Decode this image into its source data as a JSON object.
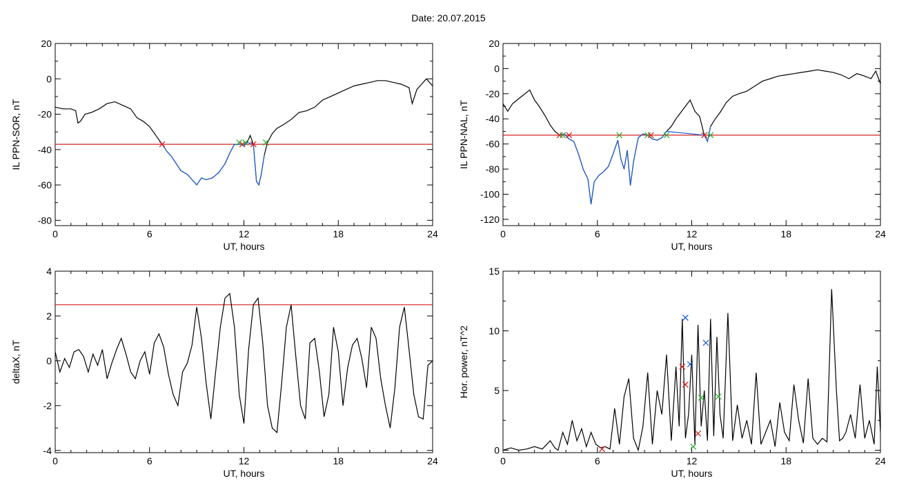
{
  "figure": {
    "title": "Date:  20.07.2015"
  },
  "chart_data": [
    {
      "type": "line",
      "panel": "top-left",
      "xlabel": "UT, hours",
      "ylabel": "IL PPN-SOR, nT",
      "xlim": [
        0,
        24
      ],
      "ylim": [
        -83,
        20
      ],
      "xticks": [
        0,
        6,
        12,
        18,
        24
      ],
      "yticks": [
        -80,
        -60,
        -40,
        -20,
        0,
        20
      ],
      "threshold": -37,
      "series": [
        {
          "color": "#000000",
          "x": [
            0,
            0.5,
            1,
            1.3,
            1.45,
            1.6,
            1.9,
            2.3,
            2.8,
            3.3,
            3.8,
            4.3,
            4.8,
            5.2,
            5.6,
            6.0,
            6.4,
            6.8,
            7.1,
            7.4,
            7.7,
            8.0,
            8.4,
            8.8,
            9.0,
            9.3,
            9.6,
            10.0,
            10.4,
            10.8,
            11.1,
            11.4,
            11.6,
            11.8,
            12.0,
            12.2,
            12.4,
            12.6,
            12.8,
            12.95,
            13.1,
            13.3,
            13.5,
            13.8,
            14.1,
            14.5,
            15.0,
            15.5,
            16.0,
            16.5,
            17.0,
            17.5,
            18.0,
            18.5,
            19.0,
            19.5,
            20.0,
            20.5,
            21.0,
            21.5,
            22.0,
            22.5,
            22.7,
            23.0,
            23.3,
            23.6,
            23.8,
            24.0
          ],
          "y": [
            -16,
            -17,
            -17,
            -18,
            -25,
            -24,
            -20,
            -19,
            -17,
            -14,
            -13,
            -15,
            -17,
            -22,
            -24,
            -27,
            -32,
            -37,
            -41,
            -44,
            -48,
            -52,
            -54,
            -58,
            -60,
            -56,
            -57,
            -56,
            -53,
            -48,
            -42,
            -37,
            -37,
            -37,
            -38,
            -36,
            -32,
            -37,
            -58,
            -60,
            -54,
            -43,
            -36,
            -31,
            -28,
            -26,
            -23,
            -19,
            -18,
            -16,
            -12,
            -10,
            -8,
            -6,
            -4,
            -3,
            -2,
            -1,
            -1,
            -2,
            -3,
            -5,
            -14,
            -6,
            -3,
            0,
            -2,
            -4
          ]
        },
        {
          "color": "#1f5fd8",
          "x": [
            6.8,
            7.1,
            7.4,
            7.7,
            8.0,
            8.4,
            8.8,
            9.0,
            9.3,
            9.6,
            10.0,
            10.4,
            10.8,
            11.1,
            11.4,
            11.6,
            11.8,
            12.0,
            12.2,
            12.6,
            12.8,
            12.95,
            13.1,
            13.3
          ],
          "y": [
            -37,
            -41,
            -44,
            -48,
            -52,
            -54,
            -58,
            -60,
            -56,
            -57,
            -56,
            -53,
            -48,
            -42,
            -37,
            -37,
            -37,
            -38,
            -36,
            -37,
            -58,
            -60,
            -54,
            -43
          ]
        }
      ],
      "markers": [
        {
          "x": 6.8,
          "y": -37,
          "color": "#d62020"
        },
        {
          "x": 11.7,
          "y": -36,
          "color": "#2cae2c"
        },
        {
          "x": 11.9,
          "y": -37,
          "color": "#d62020"
        },
        {
          "x": 12.1,
          "y": -36,
          "color": "#2cae2c"
        },
        {
          "x": 12.6,
          "y": -37,
          "color": "#d62020"
        },
        {
          "x": 13.4,
          "y": -36,
          "color": "#2cae2c"
        }
      ]
    },
    {
      "type": "line",
      "panel": "top-right",
      "xlabel": "UT, hours",
      "ylabel": "IL PPN-NAL, nT",
      "xlim": [
        0,
        24
      ],
      "ylim": [
        -125,
        20
      ],
      "xticks": [
        0,
        6,
        12,
        18,
        24
      ],
      "yticks": [
        -120,
        -100,
        -80,
        -60,
        -40,
        -20,
        0,
        20
      ],
      "threshold": -53,
      "series": [
        {
          "color": "#000000",
          "x": [
            0,
            0.3,
            0.6,
            0.9,
            1.3,
            1.7,
            2.0,
            2.3,
            2.7,
            3.0,
            3.3,
            3.6,
            3.9,
            4.2,
            4.5,
            4.8,
            5.1,
            5.4,
            5.6,
            5.8,
            6.1,
            6.4,
            6.7,
            7.0,
            7.3,
            7.5,
            7.7,
            7.9,
            8.1,
            8.3,
            8.6,
            8.9,
            9.2,
            9.5,
            9.8,
            10.1,
            10.4,
            10.7,
            11.0,
            11.3,
            11.6,
            11.9,
            12.2,
            12.5,
            12.8,
            13.0,
            13.2,
            13.5,
            13.8,
            14.2,
            14.6,
            15.0,
            15.5,
            16.0,
            16.5,
            17.0,
            17.5,
            18.0,
            18.5,
            19.0,
            19.5,
            20.0,
            20.5,
            21.0,
            21.5,
            22.0,
            22.5,
            23.0,
            23.4,
            23.7,
            24.0
          ],
          "y": [
            -28,
            -34,
            -28,
            -25,
            -21,
            -17,
            -25,
            -30,
            -38,
            -45,
            -50,
            -53,
            -52,
            -56,
            -58,
            -68,
            -80,
            -88,
            -108,
            -90,
            -85,
            -82,
            -78,
            -68,
            -57,
            -72,
            -80,
            -65,
            -93,
            -74,
            -55,
            -52,
            -53,
            -56,
            -57,
            -55,
            -50,
            -46,
            -40,
            -35,
            -30,
            -25,
            -34,
            -38,
            -53,
            -58,
            -46,
            -40,
            -35,
            -27,
            -22,
            -20,
            -18,
            -14,
            -10,
            -8,
            -6,
            -5,
            -4,
            -3,
            -2,
            -1,
            -2,
            -3,
            -5,
            -8,
            -4,
            -6,
            -8,
            -2,
            -12
          ]
        },
        {
          "color": "#1f5fd8",
          "x": [
            3.6,
            3.9,
            4.2,
            4.5,
            4.8,
            5.1,
            5.4,
            5.6,
            5.8,
            6.1,
            6.4,
            6.7,
            7.0,
            7.3,
            7.5,
            7.7,
            7.9,
            8.1,
            8.3,
            8.6,
            8.9,
            9.2,
            9.5,
            9.8,
            10.1,
            10.4,
            12.8,
            13.0,
            13.2
          ],
          "y": [
            -53,
            -52,
            -56,
            -58,
            -68,
            -80,
            -88,
            -108,
            -90,
            -85,
            -82,
            -78,
            -68,
            -57,
            -72,
            -80,
            -65,
            -93,
            -74,
            -55,
            -52,
            -53,
            -56,
            -57,
            -55,
            -50,
            -53,
            -58,
            -46
          ]
        }
      ],
      "markers": [
        {
          "x": 3.6,
          "y": -53,
          "color": "#d62020"
        },
        {
          "x": 3.8,
          "y": -53,
          "color": "#2cae2c"
        },
        {
          "x": 4.2,
          "y": -53,
          "color": "#d62020"
        },
        {
          "x": 7.4,
          "y": -53,
          "color": "#2cae2c"
        },
        {
          "x": 9.2,
          "y": -53,
          "color": "#2cae2c"
        },
        {
          "x": 9.4,
          "y": -53,
          "color": "#d62020"
        },
        {
          "x": 10.4,
          "y": -53,
          "color": "#2cae2c"
        },
        {
          "x": 12.8,
          "y": -53,
          "color": "#d62020"
        },
        {
          "x": 13.2,
          "y": -53,
          "color": "#2cae2c"
        }
      ]
    },
    {
      "type": "line",
      "panel": "bottom-left",
      "xlabel": "UT, hours",
      "ylabel": "deltaX, nT",
      "xlim": [
        0,
        24
      ],
      "ylim": [
        -4.1,
        4
      ],
      "xticks": [
        0,
        6,
        12,
        18,
        24
      ],
      "yticks": [
        -4,
        -2,
        0,
        2,
        4
      ],
      "threshold": 2.5,
      "series": [
        {
          "color": "#000000",
          "x": [
            0,
            0.3,
            0.6,
            0.9,
            1.2,
            1.5,
            1.8,
            2.1,
            2.4,
            2.7,
            3.0,
            3.3,
            3.6,
            3.9,
            4.2,
            4.5,
            4.8,
            5.1,
            5.4,
            5.7,
            6.0,
            6.3,
            6.6,
            6.9,
            7.2,
            7.5,
            7.8,
            8.1,
            8.4,
            8.7,
            9.0,
            9.3,
            9.6,
            9.9,
            10.2,
            10.5,
            10.8,
            11.1,
            11.4,
            11.7,
            12.0,
            12.3,
            12.6,
            12.9,
            13.2,
            13.5,
            13.8,
            14.1,
            14.4,
            14.7,
            15.0,
            15.3,
            15.6,
            15.9,
            16.2,
            16.5,
            16.8,
            17.1,
            17.4,
            17.7,
            18.0,
            18.3,
            18.6,
            18.9,
            19.2,
            19.5,
            19.8,
            20.1,
            20.4,
            20.7,
            21.0,
            21.3,
            21.6,
            21.9,
            22.2,
            22.5,
            22.8,
            23.1,
            23.4,
            23.7,
            24.0
          ],
          "y": [
            0.4,
            -0.5,
            0.1,
            -0.3,
            0.4,
            0.5,
            0.2,
            -0.5,
            0.3,
            -0.2,
            0.5,
            -0.8,
            -0.1,
            0.5,
            1.0,
            0.3,
            -0.5,
            -0.8,
            0.0,
            0.4,
            -0.6,
            0.8,
            1.2,
            0.6,
            -0.6,
            -1.5,
            -2.0,
            -0.5,
            -0.1,
            0.7,
            2.4,
            1.0,
            -1.0,
            -2.6,
            -0.5,
            1.5,
            2.8,
            3.0,
            1.5,
            -1.5,
            -2.8,
            0.5,
            2.5,
            2.8,
            0.8,
            -2.0,
            -3.0,
            -3.2,
            -1.0,
            1.5,
            2.5,
            0.2,
            -2.0,
            -2.6,
            0.8,
            1.0,
            -0.5,
            -2.5,
            -1.5,
            1.5,
            0.4,
            -2.0,
            -0.3,
            0.7,
            1.0,
            0.1,
            -1.2,
            1.5,
            1.0,
            -0.8,
            -2.0,
            -3.0,
            -1.2,
            1.5,
            2.4,
            0.5,
            -1.5,
            -2.5,
            -2.6,
            -0.2,
            0.0
          ]
        }
      ],
      "markers": []
    },
    {
      "type": "line",
      "panel": "bottom-right",
      "xlabel": "UT, hours",
      "ylabel": "Hor. power, nT^2",
      "xlim": [
        0,
        24
      ],
      "ylim": [
        -0.2,
        15
      ],
      "xticks": [
        0,
        6,
        12,
        18,
        24
      ],
      "yticks": [
        0,
        5,
        10,
        15
      ],
      "threshold": null,
      "series": [
        {
          "color": "#000000",
          "x": [
            0,
            0.5,
            1.0,
            1.5,
            2.0,
            2.5,
            3.0,
            3.3,
            3.5,
            3.8,
            4.1,
            4.4,
            4.7,
            5.0,
            5.3,
            5.6,
            5.9,
            6.2,
            6.5,
            6.8,
            7.1,
            7.4,
            7.7,
            8.0,
            8.3,
            8.6,
            8.9,
            9.2,
            9.5,
            9.8,
            10.1,
            10.4,
            10.7,
            11.0,
            11.2,
            11.4,
            11.6,
            11.8,
            12.0,
            12.2,
            12.4,
            12.6,
            12.8,
            13.0,
            13.2,
            13.4,
            13.6,
            13.8,
            14.0,
            14.3,
            14.6,
            14.9,
            15.2,
            15.5,
            15.8,
            16.1,
            16.4,
            16.7,
            17.0,
            17.3,
            17.6,
            17.9,
            18.2,
            18.5,
            18.8,
            19.1,
            19.4,
            19.7,
            20.0,
            20.3,
            20.6,
            20.9,
            21.2,
            21.4,
            21.6,
            21.8,
            22.1,
            22.4,
            22.7,
            23.0,
            23.3,
            23.6,
            23.8,
            24.0
          ],
          "y": [
            0,
            0.2,
            0,
            0.1,
            0.3,
            0.1,
            0.8,
            0.2,
            0,
            1.5,
            0.5,
            2.5,
            0.8,
            1.8,
            0.3,
            1.5,
            0.5,
            0.2,
            0.3,
            0.1,
            3.5,
            0.5,
            4.5,
            6.0,
            1.0,
            0,
            2.0,
            6.5,
            0.5,
            5.0,
            3.0,
            8.0,
            0.8,
            7.0,
            2.0,
            11.0,
            1.0,
            3.0,
            8.0,
            0.5,
            10.5,
            2.0,
            5.0,
            0.8,
            11.0,
            1.2,
            9.5,
            3.0,
            1.0,
            11.5,
            0.8,
            3.8,
            1.0,
            2.5,
            0.5,
            6.5,
            0.5,
            1.5,
            2.5,
            0.3,
            4.0,
            1.5,
            0.8,
            5.5,
            2.5,
            0.6,
            6.0,
            1.0,
            0.5,
            1.0,
            0.7,
            13.5,
            5.0,
            0.8,
            1.0,
            1.5,
            3.0,
            1.0,
            5.5,
            1.0,
            2.5,
            0.5,
            7.0,
            1.5
          ]
        }
      ],
      "markers": [
        {
          "x": 6.3,
          "y": 0.1,
          "color": "#d62020"
        },
        {
          "x": 11.4,
          "y": 7.0,
          "color": "#d62020"
        },
        {
          "x": 11.6,
          "y": 5.5,
          "color": "#d62020"
        },
        {
          "x": 11.6,
          "y": 11.1,
          "color": "#1f5fd8"
        },
        {
          "x": 11.9,
          "y": 7.2,
          "color": "#1f5fd8"
        },
        {
          "x": 12.1,
          "y": 0.3,
          "color": "#2cae2c"
        },
        {
          "x": 12.4,
          "y": 1.4,
          "color": "#d62020"
        },
        {
          "x": 12.6,
          "y": 4.4,
          "color": "#2cae2c"
        },
        {
          "x": 12.9,
          "y": 9.0,
          "color": "#1f5fd8"
        },
        {
          "x": 13.7,
          "y": 4.5,
          "color": "#2cae2c"
        }
      ]
    }
  ]
}
